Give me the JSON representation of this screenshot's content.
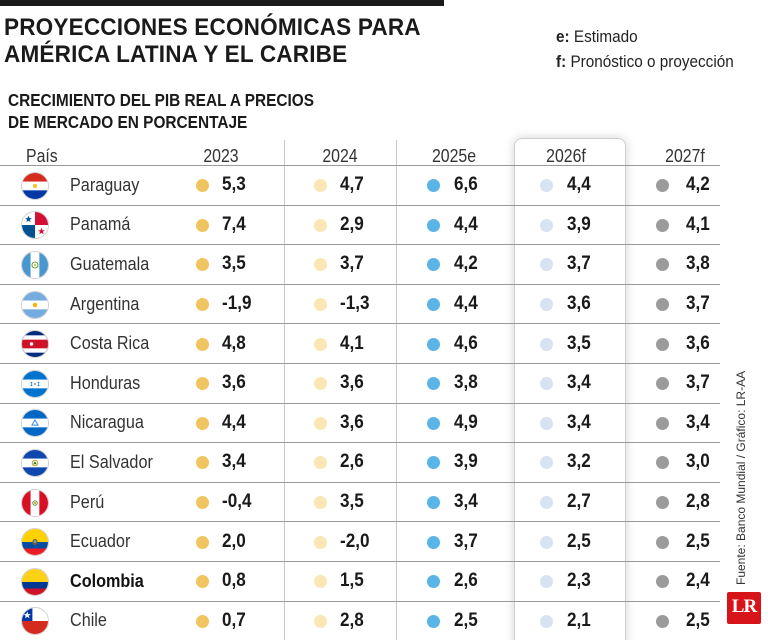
{
  "title": {
    "line1": "PROYECCIONES ECONÓMICAS PARA",
    "line2": "AMÉRICA LATINA Y EL CARIBE"
  },
  "legend": {
    "e_key": "e:",
    "e_text": "Estimado",
    "f_key": "f:",
    "f_text": "Pronóstico o proyección"
  },
  "subtitle": {
    "line1": "CRECIMIENTO DEL PIB REAL A PRECIOS",
    "line2": "DE MERCADO EN PORCENTAJE"
  },
  "source": "Fuente: Banco Mundial / Gráfico: LR-AA",
  "logo": "LR",
  "colors": {
    "2023": "#f0c55f",
    "2024": "#fbe7b3",
    "2025e": "#5ab4e6",
    "2026f": "#d8e3f2",
    "2027f": "#9b9b9b"
  },
  "chart_data": {
    "type": "table",
    "columns": [
      "País",
      "2023",
      "2024",
      "2025e",
      "2026f",
      "2027f"
    ],
    "highlighted_column": "2026f",
    "rows": [
      {
        "country": "Paraguay",
        "flag": "paraguay-flag",
        "bold": false,
        "values": [
          "5,3",
          "4,7",
          "6,6",
          "4,4",
          "4,2"
        ]
      },
      {
        "country": "Panamá",
        "flag": "panama-flag",
        "bold": false,
        "values": [
          "7,4",
          "2,9",
          "4,4",
          "3,9",
          "4,1"
        ]
      },
      {
        "country": "Guatemala",
        "flag": "guatemala-flag",
        "bold": false,
        "values": [
          "3,5",
          "3,7",
          "4,2",
          "3,7",
          "3,8"
        ]
      },
      {
        "country": "Argentina",
        "flag": "argentina-flag",
        "bold": false,
        "values": [
          "-1,9",
          "-1,3",
          "4,4",
          "3,6",
          "3,7"
        ]
      },
      {
        "country": "Costa Rica",
        "flag": "costa-rica-flag",
        "bold": false,
        "values": [
          "4,8",
          "4,1",
          "4,6",
          "3,5",
          "3,6"
        ]
      },
      {
        "country": "Honduras",
        "flag": "honduras-flag",
        "bold": false,
        "values": [
          "3,6",
          "3,6",
          "3,8",
          "3,4",
          "3,7"
        ]
      },
      {
        "country": "Nicaragua",
        "flag": "nicaragua-flag",
        "bold": false,
        "values": [
          "4,4",
          "3,6",
          "4,9",
          "3,4",
          "3,4"
        ]
      },
      {
        "country": "El Salvador",
        "flag": "el-salvador-flag",
        "bold": false,
        "values": [
          "3,4",
          "2,6",
          "3,9",
          "3,2",
          "3,0"
        ]
      },
      {
        "country": "Perú",
        "flag": "peru-flag",
        "bold": false,
        "values": [
          "-0,4",
          "3,5",
          "3,4",
          "2,7",
          "2,8"
        ]
      },
      {
        "country": "Ecuador",
        "flag": "ecuador-flag",
        "bold": false,
        "values": [
          "2,0",
          "-2,0",
          "3,7",
          "2,5",
          "2,5"
        ]
      },
      {
        "country": "Colombia",
        "flag": "colombia-flag",
        "bold": true,
        "values": [
          "0,8",
          "1,5",
          "2,6",
          "2,3",
          "2,4"
        ]
      },
      {
        "country": "Chile",
        "flag": "chile-flag",
        "bold": false,
        "values": [
          "0,7",
          "2,8",
          "2,5",
          "2,1",
          "2,5"
        ]
      }
    ]
  }
}
